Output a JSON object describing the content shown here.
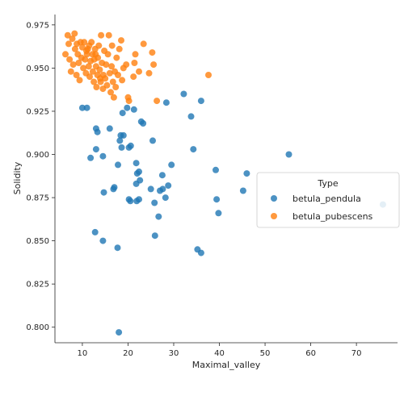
{
  "chart_data": {
    "type": "scatter",
    "xlabel": "Maximal_valley",
    "ylabel": "Solidity",
    "xlim": [
      4,
      79
    ],
    "ylim": [
      0.791,
      0.981
    ],
    "xticks": [
      10,
      20,
      30,
      40,
      50,
      60,
      70
    ],
    "yticks": [
      0.8,
      0.825,
      0.85,
      0.875,
      0.9,
      0.925,
      0.95,
      0.975
    ],
    "ytick_labels": [
      "0.800",
      "0.825",
      "0.850",
      "0.875",
      "0.900",
      "0.925",
      "0.950",
      "0.975"
    ],
    "grid": false,
    "legend": {
      "title": "Type",
      "placement": "center-right"
    },
    "series": [
      {
        "name": "betula_pendula",
        "color": "#1f77b4",
        "points": [
          [
            10.0,
            0.927
          ],
          [
            11.0,
            0.927
          ],
          [
            11.8,
            0.898
          ],
          [
            13.0,
            0.915
          ],
          [
            13.3,
            0.913
          ],
          [
            13.0,
            0.903
          ],
          [
            14.5,
            0.899
          ],
          [
            14.7,
            0.878
          ],
          [
            16.0,
            0.915
          ],
          [
            16.8,
            0.88
          ],
          [
            17.0,
            0.881
          ],
          [
            17.8,
            0.894
          ],
          [
            18.2,
            0.908
          ],
          [
            18.4,
            0.911
          ],
          [
            19.0,
            0.911
          ],
          [
            18.8,
            0.924
          ],
          [
            18.6,
            0.904
          ],
          [
            19.8,
            0.927
          ],
          [
            20.2,
            0.904
          ],
          [
            20.6,
            0.905
          ],
          [
            20.2,
            0.874
          ],
          [
            20.5,
            0.873
          ],
          [
            21.3,
            0.926
          ],
          [
            21.8,
            0.883
          ],
          [
            21.8,
            0.895
          ],
          [
            22.0,
            0.889
          ],
          [
            22.4,
            0.89
          ],
          [
            22.6,
            0.885
          ],
          [
            22.4,
            0.874
          ],
          [
            21.9,
            0.873
          ],
          [
            22.9,
            0.919
          ],
          [
            23.3,
            0.918
          ],
          [
            25.0,
            0.88
          ],
          [
            25.4,
            0.908
          ],
          [
            25.8,
            0.872
          ],
          [
            26.7,
            0.864
          ],
          [
            27.0,
            0.879
          ],
          [
            27.5,
            0.888
          ],
          [
            27.6,
            0.88
          ],
          [
            28.2,
            0.875
          ],
          [
            28.4,
            0.93
          ],
          [
            28.8,
            0.882
          ],
          [
            29.5,
            0.894
          ],
          [
            32.2,
            0.935
          ],
          [
            33.8,
            0.922
          ],
          [
            34.3,
            0.903
          ],
          [
            36.0,
            0.931
          ],
          [
            39.2,
            0.891
          ],
          [
            39.4,
            0.874
          ],
          [
            39.8,
            0.866
          ],
          [
            45.2,
            0.879
          ],
          [
            46.0,
            0.889
          ],
          [
            55.2,
            0.9
          ],
          [
            75.8,
            0.871
          ],
          [
            12.8,
            0.855
          ],
          [
            14.5,
            0.85
          ],
          [
            17.7,
            0.846
          ],
          [
            25.9,
            0.853
          ],
          [
            35.2,
            0.845
          ],
          [
            36.0,
            0.843
          ],
          [
            18.0,
            0.797
          ]
        ]
      },
      {
        "name": "betula_pubescens",
        "color": "#ff7f0e",
        "points": [
          [
            6.3,
            0.958
          ],
          [
            6.8,
            0.969
          ],
          [
            7.0,
            0.964
          ],
          [
            7.2,
            0.955
          ],
          [
            7.5,
            0.948
          ],
          [
            7.8,
            0.967
          ],
          [
            8.0,
            0.952
          ],
          [
            8.3,
            0.97
          ],
          [
            8.4,
            0.961
          ],
          [
            8.7,
            0.946
          ],
          [
            8.8,
            0.964
          ],
          [
            9.0,
            0.958
          ],
          [
            9.2,
            0.953
          ],
          [
            9.4,
            0.943
          ],
          [
            9.6,
            0.965
          ],
          [
            9.8,
            0.956
          ],
          [
            10.0,
            0.962
          ],
          [
            10.2,
            0.95
          ],
          [
            10.4,
            0.965
          ],
          [
            10.6,
            0.955
          ],
          [
            10.8,
            0.947
          ],
          [
            11.0,
            0.958
          ],
          [
            11.2,
            0.961
          ],
          [
            11.4,
            0.951
          ],
          [
            11.6,
            0.945
          ],
          [
            11.8,
            0.954
          ],
          [
            12.0,
            0.965
          ],
          [
            12.2,
            0.958
          ],
          [
            12.3,
            0.948
          ],
          [
            12.5,
            0.942
          ],
          [
            12.6,
            0.955
          ],
          [
            12.8,
            0.961
          ],
          [
            13.0,
            0.951
          ],
          [
            13.1,
            0.939
          ],
          [
            13.3,
            0.946
          ],
          [
            13.4,
            0.956
          ],
          [
            13.6,
            0.963
          ],
          [
            13.8,
            0.949
          ],
          [
            14.0,
            0.942
          ],
          [
            14.1,
            0.969
          ],
          [
            14.3,
            0.953
          ],
          [
            14.5,
            0.938
          ],
          [
            14.6,
            0.946
          ],
          [
            14.8,
            0.96
          ],
          [
            15.0,
            0.944
          ],
          [
            15.2,
            0.952
          ],
          [
            15.4,
            0.94
          ],
          [
            15.6,
            0.958
          ],
          [
            15.8,
            0.969
          ],
          [
            16.0,
            0.947
          ],
          [
            16.2,
            0.936
          ],
          [
            16.4,
            0.951
          ],
          [
            16.5,
            0.963
          ],
          [
            16.7,
            0.942
          ],
          [
            16.9,
            0.933
          ],
          [
            17.1,
            0.948
          ],
          [
            17.3,
            0.939
          ],
          [
            17.5,
            0.956
          ],
          [
            17.8,
            0.946
          ],
          [
            18.1,
            0.961
          ],
          [
            18.5,
            0.966
          ],
          [
            18.7,
            0.943
          ],
          [
            19.0,
            0.95
          ],
          [
            19.6,
            0.952
          ],
          [
            20.0,
            0.933
          ],
          [
            20.2,
            0.931
          ],
          [
            21.2,
            0.945
          ],
          [
            21.4,
            0.953
          ],
          [
            21.6,
            0.958
          ],
          [
            22.4,
            0.948
          ],
          [
            23.4,
            0.964
          ],
          [
            24.6,
            0.947
          ],
          [
            25.3,
            0.959
          ],
          [
            25.6,
            0.952
          ],
          [
            26.3,
            0.931
          ],
          [
            37.6,
            0.946
          ],
          [
            11.5,
            0.963
          ],
          [
            13.9,
            0.944
          ],
          [
            12.9,
            0.958
          ],
          [
            10.9,
            0.96
          ]
        ]
      }
    ]
  }
}
